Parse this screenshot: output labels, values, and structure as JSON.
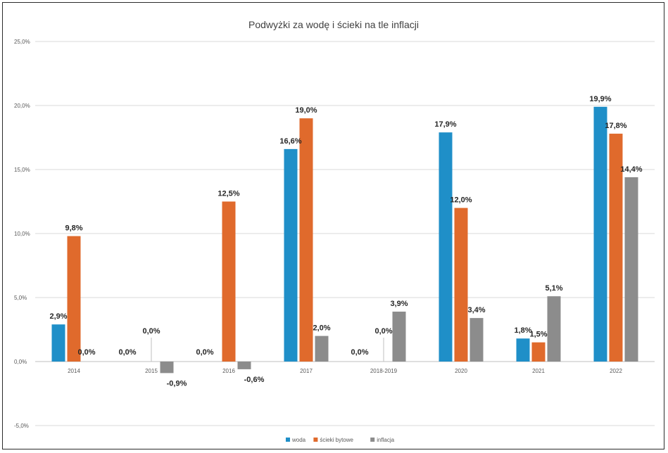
{
  "chart_data": {
    "type": "bar",
    "title": "Podwyżki za wodę i ścieki na tle inflacji",
    "xlabel": "",
    "ylabel": "",
    "ylim": [
      -5,
      25
    ],
    "yticks": [
      "25,0%",
      "20,0%",
      "15,0%",
      "10,0%",
      "5,0%",
      "0,0%",
      "-5,0%"
    ],
    "ytick_values": [
      25,
      20,
      15,
      10,
      5,
      0,
      -5
    ],
    "grid": true,
    "legend_position": "bottom",
    "categories": [
      "2014",
      "2015",
      "2016",
      "2017",
      "2018-2019",
      "2020",
      "2021",
      "2022"
    ],
    "series": [
      {
        "name": "woda",
        "color": "#1f8fc8",
        "values": [
          2.9,
          0.0,
          0.0,
          16.6,
          0.0,
          17.9,
          1.8,
          19.9
        ],
        "labels": [
          "2,9%",
          "0,0%",
          "0,0%",
          "16,6%",
          "0,0%",
          "17,9%",
          "1,8%",
          "19,9%"
        ]
      },
      {
        "name": "ścieki bytowe",
        "color": "#e06a2c",
        "values": [
          9.8,
          0.0,
          12.5,
          19.0,
          0.0,
          12.0,
          1.5,
          17.8
        ],
        "labels": [
          "9,8%",
          "0,0%",
          "12,5%",
          "19,0%",
          "0,0%",
          "12,0%",
          "1,5%",
          "17,8%"
        ]
      },
      {
        "name": "inflacja",
        "color": "#8c8c8c",
        "values": [
          0.0,
          -0.9,
          -0.6,
          2.0,
          3.9,
          3.4,
          5.1,
          14.4
        ],
        "labels": [
          "0,0%",
          "-0,9%",
          "-0,6%",
          "2,0%",
          "3,9%",
          "3,4%",
          "5,1%",
          "14,4%"
        ]
      }
    ]
  }
}
